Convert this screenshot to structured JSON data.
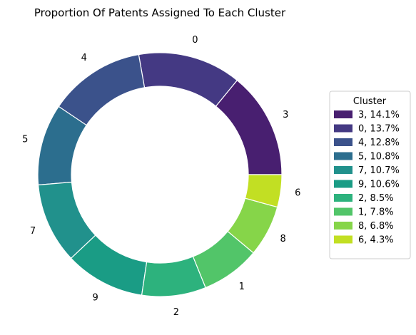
{
  "chart_data": {
    "type": "pie",
    "title": "Proportion Of Patents Assigned To Each Cluster",
    "legend": {
      "title": "Cluster",
      "placement": "right"
    },
    "slices": [
      {
        "label": "3",
        "value": 14.1,
        "legend_label": "3, 14.1%",
        "color": "#481f70"
      },
      {
        "label": "0",
        "value": 13.7,
        "legend_label": "0, 13.7%",
        "color": "#443983"
      },
      {
        "label": "4",
        "value": 12.8,
        "legend_label": "4, 12.8%",
        "color": "#3b528b"
      },
      {
        "label": "5",
        "value": 10.8,
        "legend_label": "5, 10.8%",
        "color": "#2c6e8e"
      },
      {
        "label": "7",
        "value": 10.7,
        "legend_label": "7, 10.7%",
        "color": "#21918c"
      },
      {
        "label": "9",
        "value": 10.6,
        "legend_label": "9, 10.6%",
        "color": "#1a9c85"
      },
      {
        "label": "2",
        "value": 8.5,
        "legend_label": "2, 8.5%",
        "color": "#2db27d"
      },
      {
        "label": "1",
        "value": 7.8,
        "legend_label": "1, 7.8%",
        "color": "#52c569"
      },
      {
        "label": "8",
        "value": 6.8,
        "legend_label": "8, 6.8%",
        "color": "#86d549"
      },
      {
        "label": "6",
        "value": 4.3,
        "legend_label": "6, 4.3%",
        "color": "#c2df23"
      }
    ]
  }
}
